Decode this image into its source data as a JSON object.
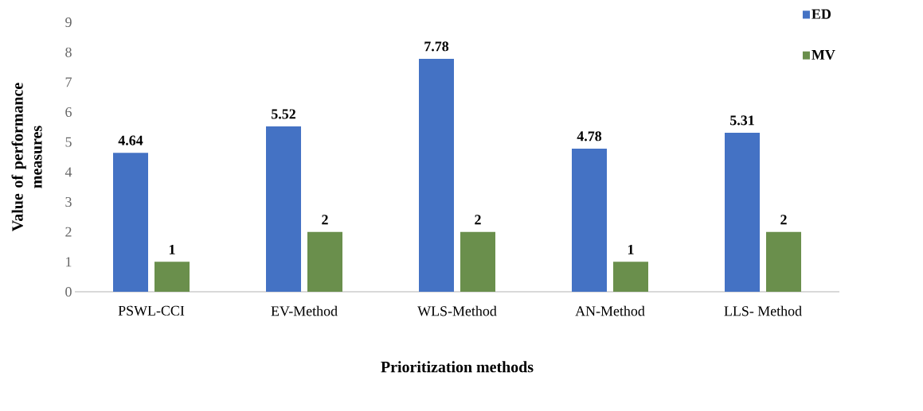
{
  "chart_data": {
    "type": "bar",
    "xlabel": "Prioritization methods",
    "ylabel": "Value of performance measures",
    "categories": [
      "PSWL-CCI",
      "EV-Method",
      "WLS-Method",
      "AN-Method",
      "LLS- Method"
    ],
    "series": [
      {
        "name": "ED",
        "color": "#4472c4",
        "values": [
          4.64,
          5.52,
          7.78,
          4.78,
          5.31
        ]
      },
      {
        "name": "MV",
        "color": "#6a8f4c",
        "values": [
          1,
          2,
          2,
          1,
          2
        ]
      }
    ],
    "ylim": [
      0,
      9
    ],
    "yticks": [
      0,
      1,
      2,
      3,
      4,
      5,
      6,
      7,
      8,
      9
    ],
    "data_labels": true,
    "legend": "top right",
    "grid": false
  }
}
